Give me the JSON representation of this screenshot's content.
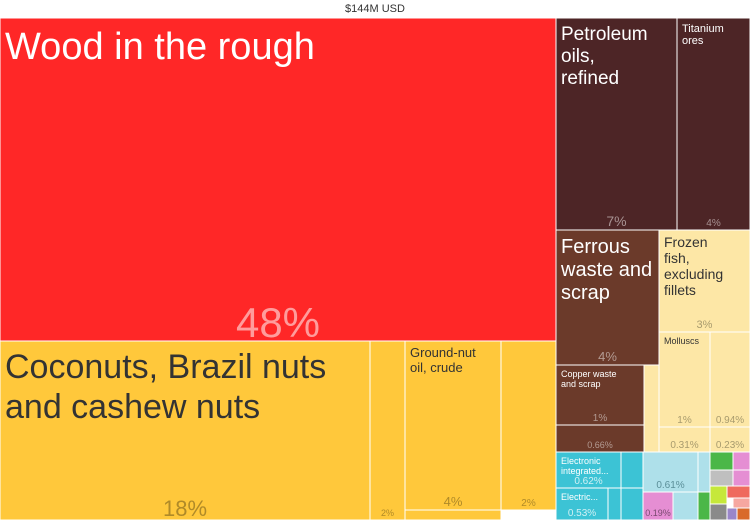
{
  "title": "$144M USD",
  "chart_data": {
    "type": "treemap",
    "total": "$144M USD",
    "items": [
      {
        "label": "Wood in the rough",
        "share_label": "48%",
        "value": 48,
        "color": "#ff2727",
        "text_color": "#ffffff",
        "pct_color": "#ff9c9c"
      },
      {
        "label": "Coconuts, Brazil nuts and cashew nuts",
        "share_label": "18%",
        "value": 18,
        "color": "#ffc83b",
        "text_color": "#333333",
        "pct_color": "#b08a28"
      },
      {
        "label": "Ground-nut oil, crude",
        "share_label": "4%",
        "value": 4,
        "color": "#ffc83b",
        "text_color": "#333333",
        "pct_color": "#b08a28"
      },
      {
        "label": "",
        "share_label": "2%",
        "value": 2,
        "color": "#ffc83b",
        "text_color": "#333333",
        "pct_color": "#b08a28"
      },
      {
        "label": "",
        "share_label": "2%",
        "value": 2,
        "color": "#ffc83b",
        "text_color": "#333333",
        "pct_color": "#b08a28"
      },
      {
        "label": "Petroleum oils, refined",
        "share_label": "7%",
        "value": 7,
        "color": "#4d2526",
        "text_color": "#ffffff",
        "pct_color": "#a89293"
      },
      {
        "label": "Titanium ores",
        "share_label": "4%",
        "value": 4,
        "color": "#4d2526",
        "text_color": "#ffffff",
        "pct_color": "#a89293"
      },
      {
        "label": "Ferrous waste and scrap",
        "share_label": "4%",
        "value": 4,
        "color": "#6b3a2a",
        "text_color": "#ffffff",
        "pct_color": "#b39b93"
      },
      {
        "label": "Copper waste and scrap",
        "share_label": "1%",
        "value": 1,
        "color": "#6b3a2a",
        "text_color": "#ffffff",
        "pct_color": "#b39b93"
      },
      {
        "label": "",
        "share_label": "0.66%",
        "value": 0.66,
        "color": "#6b3a2a",
        "text_color": "#ffffff",
        "pct_color": "#b39b93"
      },
      {
        "label": "Frozen fish, excluding fillets",
        "share_label": "3%",
        "value": 3,
        "color": "#fde7a6",
        "text_color": "#333333",
        "pct_color": "#a89b6e"
      },
      {
        "label": "Molluscs",
        "share_label": "1%",
        "value": 1,
        "color": "#fde7a6",
        "text_color": "#333333",
        "pct_color": "#a89b6e"
      },
      {
        "label": "",
        "share_label": "0.94%",
        "value": 0.94,
        "color": "#fde7a6",
        "text_color": "#333333",
        "pct_color": "#a89b6e"
      },
      {
        "label": "",
        "share_label": "0.31%",
        "value": 0.31,
        "color": "#fde7a6",
        "text_color": "#333333",
        "pct_color": "#a89b6e"
      },
      {
        "label": "",
        "share_label": "0.23%",
        "value": 0.23,
        "color": "#fde7a6",
        "text_color": "#333333",
        "pct_color": "#a89b6e"
      },
      {
        "label": "Electronic integrated...",
        "share_label": "0.62%",
        "value": 0.62,
        "color": "#3cc3d5",
        "text_color": "#ffffff",
        "pct_color": "#d0f0f4"
      },
      {
        "label": "Electric...",
        "share_label": "0.53%",
        "value": 0.53,
        "color": "#3cc3d5",
        "text_color": "#ffffff",
        "pct_color": "#d0f0f4"
      },
      {
        "label": "",
        "share_label": "0.61%",
        "value": 0.61,
        "color": "#aee0ea",
        "text_color": "#333333",
        "pct_color": "#5b8f99"
      },
      {
        "label": "",
        "share_label": "0.19%",
        "value": 0.19,
        "color": "#e58ed3",
        "text_color": "#333333",
        "pct_color": "#7a4a70"
      }
    ],
    "minor_blocks": [
      "#ffc83b",
      "#ffc83b",
      "#6b3a2a",
      "#fde7a6",
      "#3cc3d5",
      "#3cc3d5",
      "#3cc3d5",
      "#aee0ea",
      "#aee0ea",
      "#e58ed3",
      "#e58ed3",
      "#4bb748",
      "#4bb748",
      "#c6e83a",
      "#8a8a8a",
      "#ef6a5e",
      "#f6a7a0",
      "#d96a2b",
      "#bfbfbf",
      "#9a86c9"
    ]
  }
}
